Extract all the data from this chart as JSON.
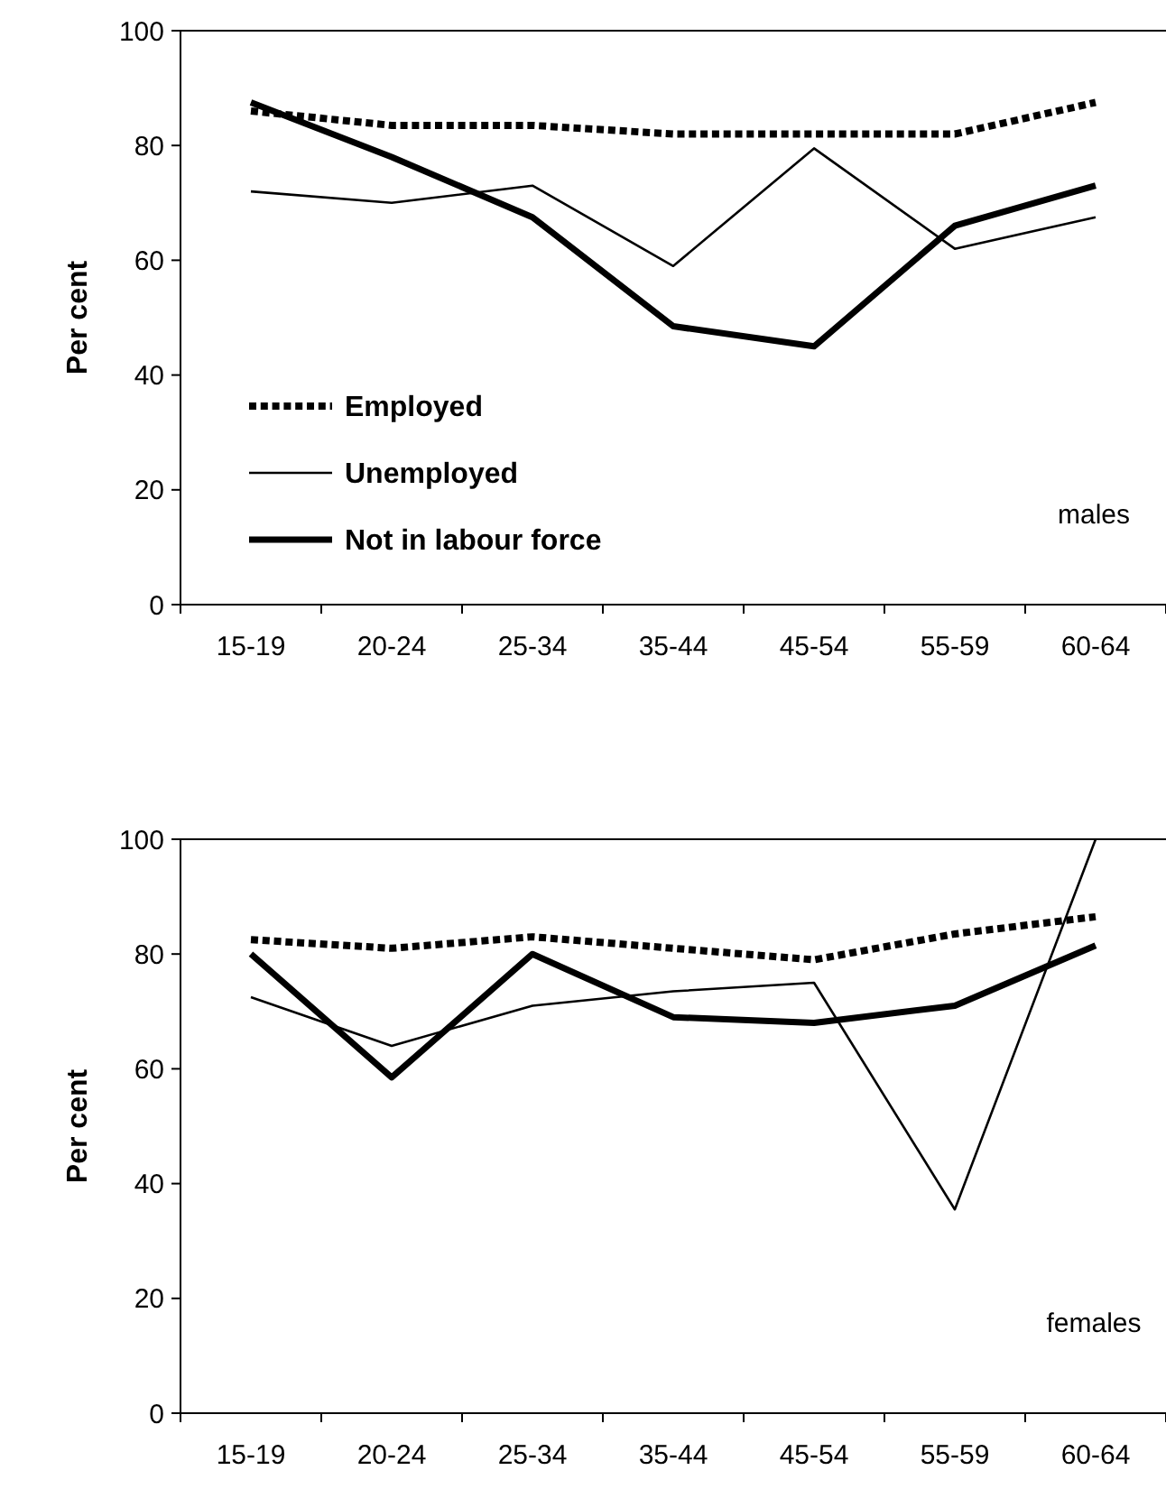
{
  "chart_data": [
    {
      "type": "line",
      "ylabel": "Per cent",
      "categories": [
        "15-19",
        "20-24",
        "25-34",
        "35-44",
        "45-54",
        "55-59",
        "60-64"
      ],
      "ylim": [
        0,
        100
      ],
      "yticks": [
        0,
        20,
        40,
        60,
        80,
        100
      ],
      "grid": false,
      "legend": "bottom left",
      "annotations": [
        "males"
      ],
      "series": [
        {
          "name": "Employed",
          "color": "#000000",
          "line_style": "dotted",
          "values": [
            86,
            83.5,
            83.5,
            82,
            82,
            82,
            87.5
          ]
        },
        {
          "name": "Unemployed",
          "color": "#000000",
          "line_style": "solid",
          "values": [
            72,
            70,
            73,
            59,
            79.5,
            62,
            67.5
          ]
        },
        {
          "name": "Not in labour force",
          "color": "#000000",
          "line_style": "solid",
          "values": [
            87.5,
            78,
            67.5,
            48.5,
            45,
            66,
            73
          ]
        }
      ]
    },
    {
      "type": "line",
      "ylabel": "Per cent",
      "categories": [
        "15-19",
        "20-24",
        "25-34",
        "35-44",
        "45-54",
        "55-59",
        "60-64"
      ],
      "ylim": [
        0,
        100
      ],
      "yticks": [
        0,
        20,
        40,
        60,
        80,
        100
      ],
      "grid": false,
      "legend": false,
      "annotations": [
        "females"
      ],
      "series": [
        {
          "color": "#000000",
          "line_style": "dotted",
          "values": [
            82.5,
            81,
            83,
            81,
            79,
            83.5,
            86.5
          ]
        },
        {
          "color": "#000000",
          "line_style": "solid",
          "values": [
            72.5,
            64,
            71,
            73.5,
            75,
            35.5,
            100
          ]
        },
        {
          "color": "#000000",
          "line_style": "solid",
          "values": [
            80,
            58.5,
            80,
            69,
            68,
            71,
            81.5
          ]
        }
      ]
    }
  ]
}
